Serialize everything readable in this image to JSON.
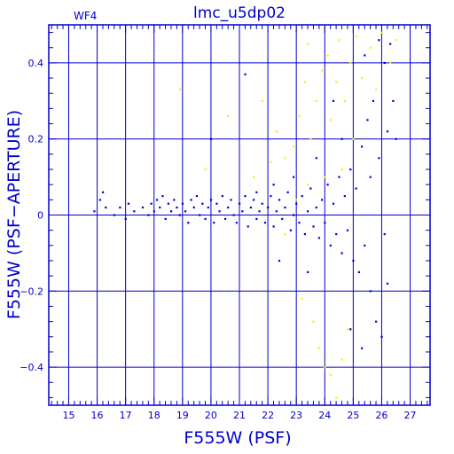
{
  "chart_data": {
    "type": "scatter",
    "title": "lmc_u5dp02",
    "subtitle": "WF4",
    "xlabel": "F555W (PSF)",
    "ylabel": "F555W (PSF−APERTURE)",
    "xlim": [
      14.3,
      27.7
    ],
    "ylim": [
      -0.5,
      0.5
    ],
    "x_ticks": [
      15,
      16,
      17,
      18,
      19,
      20,
      21,
      22,
      23,
      24,
      25,
      26,
      27
    ],
    "x_tick_labels": [
      "15",
      "16",
      "17",
      "18",
      "19",
      "20",
      "21",
      "22",
      "23",
      "24",
      "25",
      "26",
      "27"
    ],
    "y_ticks": [
      -0.4,
      -0.2,
      0,
      0.2,
      0.4
    ],
    "y_tick_labels": [
      "−0.4",
      "−0.2",
      "0",
      "0.2",
      "0.4"
    ],
    "grid": true,
    "colors": {
      "frame": "#0000cc",
      "series_blue": "#0000dd",
      "series_yellow": "#f2f200"
    },
    "series": [
      {
        "color": "#0000dd",
        "points": [
          [
            15.9,
            0.01
          ],
          [
            16.1,
            0.04
          ],
          [
            16.2,
            0.06
          ],
          [
            16.3,
            0.02
          ],
          [
            16.6,
            0.0
          ],
          [
            16.8,
            0.02
          ],
          [
            17.0,
            -0.01
          ],
          [
            17.1,
            0.03
          ],
          [
            17.3,
            0.01
          ],
          [
            17.6,
            0.02
          ],
          [
            17.8,
            0.0
          ],
          [
            17.9,
            0.03
          ],
          [
            18.0,
            0.01
          ],
          [
            18.1,
            0.04
          ],
          [
            18.2,
            0.02
          ],
          [
            18.3,
            0.05
          ],
          [
            18.4,
            -0.01
          ],
          [
            18.5,
            0.03
          ],
          [
            18.6,
            0.01
          ],
          [
            18.7,
            0.04
          ],
          [
            18.8,
            0.02
          ],
          [
            18.9,
            0.0
          ],
          [
            19.0,
            0.03
          ],
          [
            19.1,
            0.01
          ],
          [
            19.2,
            -0.02
          ],
          [
            19.3,
            0.04
          ],
          [
            19.4,
            0.02
          ],
          [
            19.5,
            0.05
          ],
          [
            19.6,
            0.0
          ],
          [
            19.7,
            0.03
          ],
          [
            19.8,
            -0.01
          ],
          [
            19.9,
            0.02
          ],
          [
            20.0,
            0.04
          ],
          [
            20.1,
            -0.02
          ],
          [
            20.2,
            0.03
          ],
          [
            20.3,
            0.01
          ],
          [
            20.4,
            0.05
          ],
          [
            20.5,
            -0.01
          ],
          [
            20.6,
            0.02
          ],
          [
            20.7,
            0.04
          ],
          [
            20.8,
            0.0
          ],
          [
            20.9,
            -0.02
          ],
          [
            21.0,
            0.03
          ],
          [
            21.1,
            0.01
          ],
          [
            21.2,
            0.05
          ],
          [
            21.3,
            -0.03
          ],
          [
            21.4,
            0.02
          ],
          [
            21.5,
            0.04
          ],
          [
            21.6,
            -0.01
          ],
          [
            21.7,
            0.01
          ],
          [
            21.8,
            0.03
          ],
          [
            21.9,
            -0.02
          ],
          [
            22.0,
            0.02
          ],
          [
            22.1,
            0.05
          ],
          [
            22.2,
            -0.03
          ],
          [
            22.3,
            0.01
          ],
          [
            22.4,
            0.04
          ],
          [
            22.5,
            -0.01
          ],
          [
            22.6,
            0.02
          ],
          [
            22.7,
            0.06
          ],
          [
            22.8,
            -0.04
          ],
          [
            22.9,
            0.0
          ],
          [
            23.0,
            0.03
          ],
          [
            23.1,
            -0.02
          ],
          [
            23.2,
            0.05
          ],
          [
            23.3,
            -0.05
          ],
          [
            23.4,
            0.01
          ],
          [
            23.5,
            0.07
          ],
          [
            23.6,
            -0.03
          ],
          [
            23.7,
            0.02
          ],
          [
            23.8,
            -0.06
          ],
          [
            23.9,
            0.04
          ],
          [
            24.0,
            -0.02
          ],
          [
            24.1,
            0.08
          ],
          [
            24.2,
            -0.08
          ],
          [
            24.3,
            0.03
          ],
          [
            24.4,
            -0.05
          ],
          [
            24.5,
            0.1
          ],
          [
            24.6,
            -0.1
          ],
          [
            24.7,
            0.05
          ],
          [
            24.8,
            -0.04
          ],
          [
            24.9,
            0.12
          ],
          [
            25.0,
            -0.12
          ],
          [
            25.1,
            0.07
          ],
          [
            25.2,
            -0.15
          ],
          [
            25.3,
            0.18
          ],
          [
            25.4,
            -0.08
          ],
          [
            25.5,
            0.25
          ],
          [
            25.6,
            -0.2
          ],
          [
            25.7,
            0.3
          ],
          [
            25.8,
            -0.28
          ],
          [
            25.9,
            0.15
          ],
          [
            26.0,
            -0.32
          ],
          [
            26.1,
            0.4
          ],
          [
            26.2,
            -0.18
          ],
          [
            26.3,
            0.45
          ],
          [
            26.4,
            0.3
          ],
          [
            26.5,
            0.2
          ],
          [
            25.4,
            0.42
          ],
          [
            25.9,
            0.46
          ],
          [
            26.2,
            0.22
          ],
          [
            25.3,
            -0.35
          ],
          [
            25.6,
            0.1
          ],
          [
            26.1,
            -0.05
          ],
          [
            24.6,
            0.2
          ],
          [
            24.9,
            -0.3
          ],
          [
            23.4,
            -0.15
          ],
          [
            22.4,
            -0.12
          ],
          [
            21.2,
            0.37
          ],
          [
            20.0,
            0.2
          ],
          [
            22.9,
            0.1
          ],
          [
            23.7,
            0.15
          ],
          [
            24.3,
            0.3
          ],
          [
            22.2,
            0.08
          ],
          [
            21.6,
            0.06
          ]
        ]
      },
      {
        "color": "#f2f200",
        "points": [
          [
            18.9,
            0.33
          ],
          [
            19.8,
            0.12
          ],
          [
            20.6,
            0.26
          ],
          [
            21.8,
            0.3
          ],
          [
            22.3,
            0.22
          ],
          [
            22.6,
            0.15
          ],
          [
            22.9,
            0.18
          ],
          [
            23.1,
            0.26
          ],
          [
            23.3,
            0.35
          ],
          [
            23.4,
            0.45
          ],
          [
            23.5,
            0.2
          ],
          [
            23.7,
            0.3
          ],
          [
            23.9,
            0.38
          ],
          [
            24.1,
            0.42
          ],
          [
            24.2,
            0.25
          ],
          [
            24.4,
            0.35
          ],
          [
            24.5,
            0.46
          ],
          [
            24.7,
            0.3
          ],
          [
            24.9,
            0.4
          ],
          [
            25.1,
            0.47
          ],
          [
            25.3,
            0.36
          ],
          [
            25.6,
            0.44
          ],
          [
            25.8,
            0.33
          ],
          [
            26.0,
            0.48
          ],
          [
            26.3,
            0.4
          ],
          [
            26.5,
            0.46
          ],
          [
            23.6,
            -0.28
          ],
          [
            23.8,
            -0.35
          ],
          [
            24.0,
            -0.4
          ],
          [
            24.2,
            -0.42
          ],
          [
            24.4,
            -0.48
          ],
          [
            24.6,
            -0.38
          ],
          [
            24.8,
            -0.3
          ],
          [
            23.2,
            -0.22
          ],
          [
            22.6,
            -0.05
          ],
          [
            23.4,
            0.08
          ],
          [
            24.0,
            0.1
          ],
          [
            23.0,
            0.04
          ],
          [
            24.6,
            0.12
          ],
          [
            25.0,
            0.2
          ],
          [
            21.5,
            0.1
          ],
          [
            22.1,
            0.14
          ]
        ]
      }
    ]
  }
}
